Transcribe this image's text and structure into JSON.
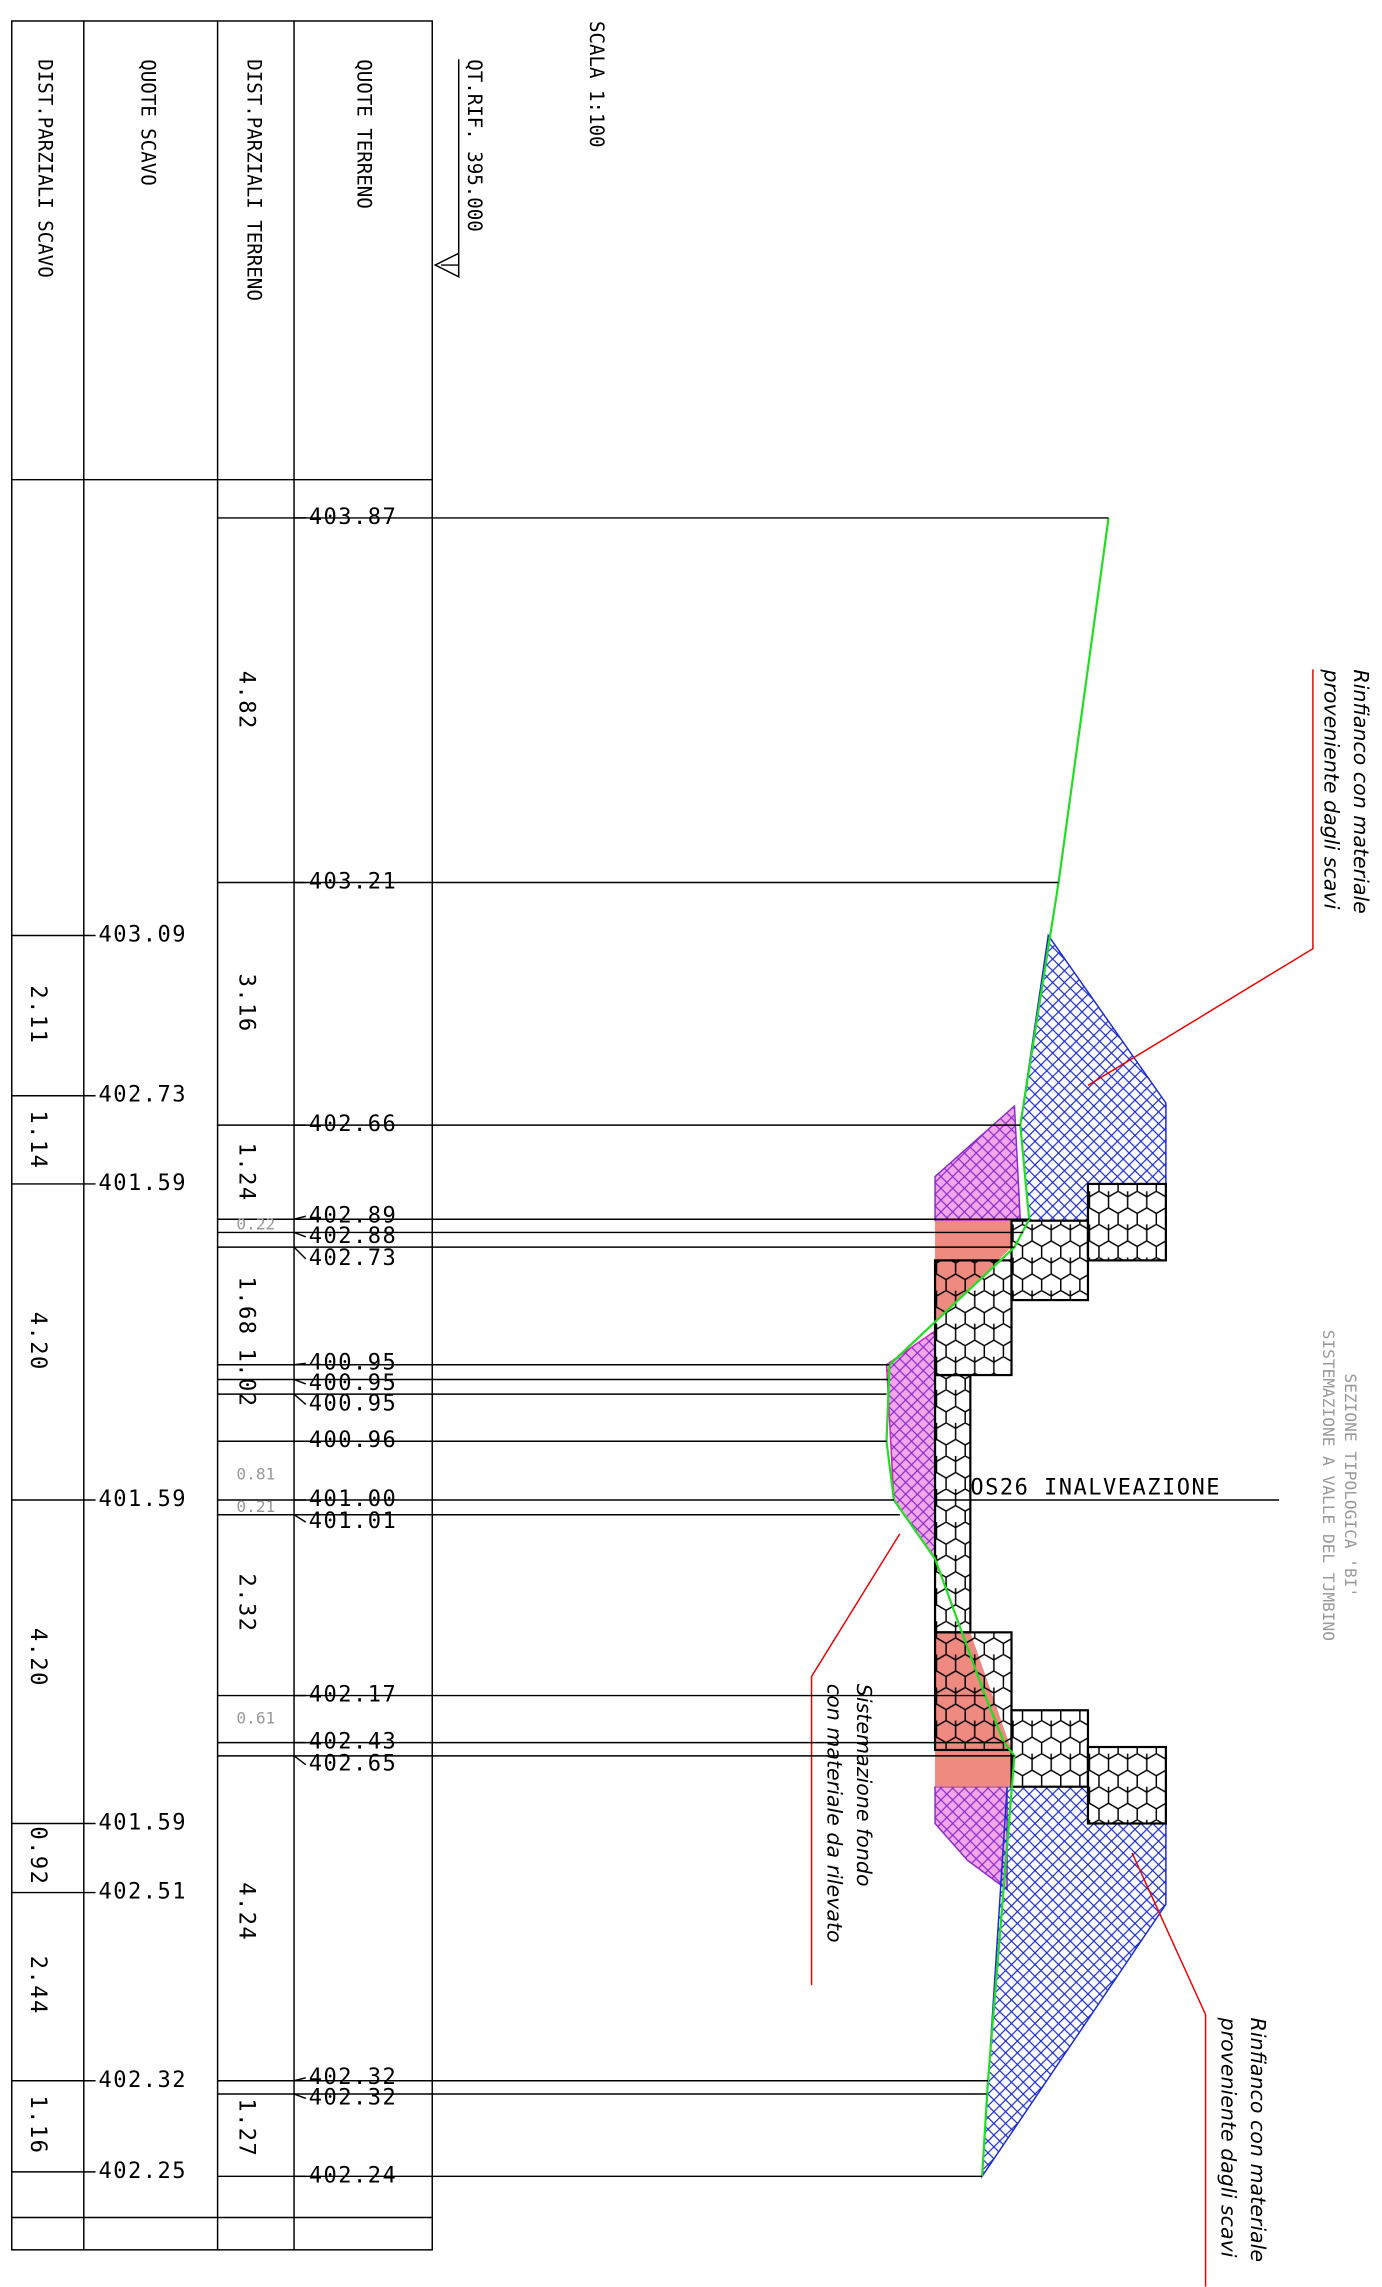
{
  "scale": "SCALA 1:100",
  "reference": "QT.RIF.  395.000",
  "headers": [
    "QUOTE TERRENO",
    "DIST.PARZIALI TERRENO",
    "QUOTE SCAVO",
    "DIST.PARZIALI SCAVO"
  ],
  "terrain_elevations": [
    "403.87",
    "403.21",
    "402.66",
    "402.89",
    "402.88",
    "402.73",
    "400.95",
    "400.95",
    "400.95",
    "400.96",
    "401.00",
    "401.01",
    "402.17",
    "402.43",
    "402.65",
    "402.32",
    "402.32",
    "402.24"
  ],
  "terrain_distances": [
    "4.82",
    "3.16",
    "1.24",
    "0.22",
    "1.68",
    "1.02",
    "0.81",
    "0.21",
    "2.32",
    "0.61",
    "4.24",
    "1.27"
  ],
  "excavation_elevations": [
    "403.09",
    "402.73",
    "401.59",
    "401.59",
    "401.59",
    "402.51",
    "402.32",
    "402.25"
  ],
  "excavation_distances": [
    "2.11",
    "1.14",
    "4.20",
    "4.20",
    "0.92",
    "2.44",
    "1.16"
  ],
  "section_label": "OS26 INALVEAZIONE",
  "title": [
    "SEZIONE TIPOLOGICA 'BI'",
    "SISTEMAZIONE A VALLE DEL TJMBINO"
  ],
  "notes": [
    [
      "Rinfianco con materiale",
      "proveniente dagli scavi"
    ],
    [
      "Sistemazione fondo",
      "con materiale da rilevato"
    ],
    [
      "Rinfianco con materiale",
      "proveniente dagli scavi"
    ]
  ]
}
